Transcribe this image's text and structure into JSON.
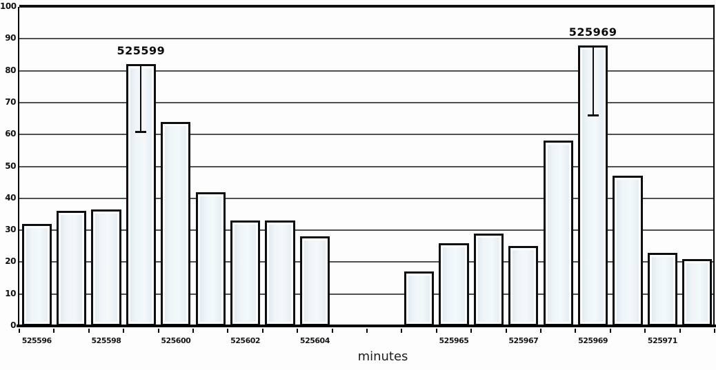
{
  "chart_data": {
    "type": "bar",
    "title": "",
    "xlabel": "minutes",
    "ylabel": "",
    "ylim": [
      0,
      100
    ],
    "grid": true,
    "legend": false,
    "y_ticks": [
      0,
      10,
      20,
      30,
      40,
      50,
      60,
      70,
      80,
      90,
      100
    ],
    "x_ticks": [
      {
        "slot": 0,
        "label": "525596"
      },
      {
        "slot": 2,
        "label": "525598"
      },
      {
        "slot": 4,
        "label": "525600"
      },
      {
        "slot": 6,
        "label": "525602"
      },
      {
        "slot": 8,
        "label": "525604"
      },
      {
        "slot": 12,
        "label": "525965"
      },
      {
        "slot": 14,
        "label": "525967"
      },
      {
        "slot": 16,
        "label": "525969"
      },
      {
        "slot": 18,
        "label": "525971"
      }
    ],
    "total_slots": 20,
    "bars": [
      {
        "slot": 0,
        "value": 32
      },
      {
        "slot": 1,
        "value": 36
      },
      {
        "slot": 2,
        "value": 36.5
      },
      {
        "slot": 3,
        "value": 82,
        "annotation": "525599",
        "whisker_to": 61
      },
      {
        "slot": 4,
        "value": 64
      },
      {
        "slot": 5,
        "value": 42
      },
      {
        "slot": 6,
        "value": 33
      },
      {
        "slot": 7,
        "value": 33
      },
      {
        "slot": 8,
        "value": 28
      },
      {
        "slot": 11,
        "value": 17
      },
      {
        "slot": 12,
        "value": 26
      },
      {
        "slot": 13,
        "value": 29
      },
      {
        "slot": 14,
        "value": 25
      },
      {
        "slot": 15,
        "value": 58
      },
      {
        "slot": 16,
        "value": 88,
        "annotation": "525969",
        "whisker_to": 66
      },
      {
        "slot": 17,
        "value": 47
      },
      {
        "slot": 18,
        "value": 23
      },
      {
        "slot": 19,
        "value": 21
      }
    ],
    "colors": {
      "bar_fill": "#e9f0f5",
      "bar_border": "#0d0d0d",
      "gridline": "#4f4f4f",
      "axis": "#000000",
      "text": "#111111",
      "background": "#fdfdfd"
    }
  }
}
